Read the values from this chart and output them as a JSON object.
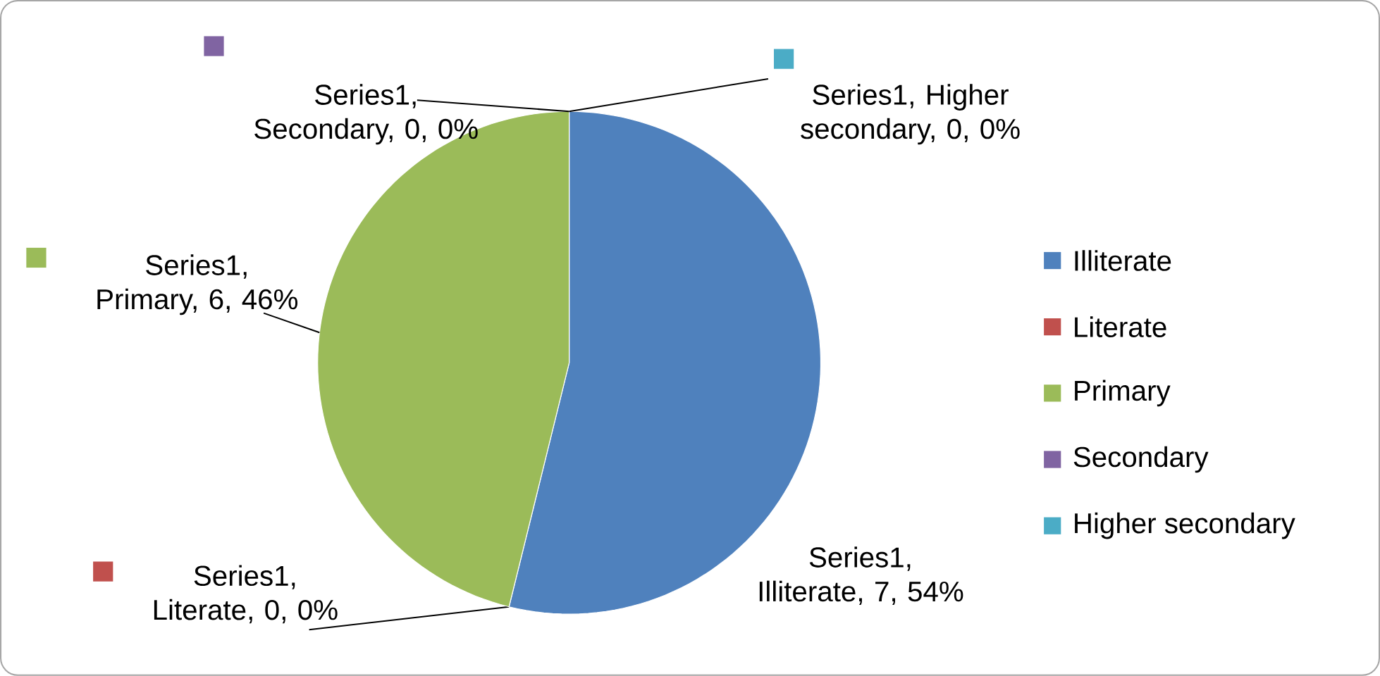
{
  "chart_data": {
    "type": "pie",
    "categories": [
      "Illiterate",
      "Literate",
      "Primary",
      "Secondary",
      "Higher  secondary"
    ],
    "values": [
      7,
      0,
      6,
      0,
      0
    ],
    "colors": [
      "#4f81bd",
      "#c0504d",
      "#9bbb59",
      "#8064a2",
      "#4bacc6"
    ],
    "value_labels": [
      "Series1, Illiterate, 7, 54%",
      "Series1, Literate, 0, 0%",
      "Series1, Primary, 6, 46%",
      "Series1, Secondary, 0, 0%",
      "Series1, Higher secondary, 0, 0%"
    ],
    "legend": "right"
  }
}
